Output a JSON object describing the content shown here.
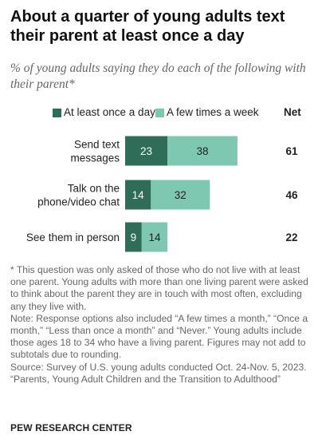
{
  "title": "About a quarter of young adults text their parent at least once a day",
  "subtitle": "% of young adults saying they do each of the following with their parent*",
  "net_header": "Net",
  "colors": {
    "daily": "#2f6d58",
    "weekly": "#7ec8b2",
    "text_dark": "#ffffff",
    "text_light": "#1f1f1f"
  },
  "chart_data": {
    "type": "bar",
    "orientation": "horizontal",
    "stacked": true,
    "categories": [
      "Send text messages",
      "Talk on the phone/video chat",
      "See them in person"
    ],
    "category_lines": [
      [
        "Send text",
        "messages"
      ],
      [
        "Talk on the",
        "phone/video chat"
      ],
      [
        "See them in person"
      ]
    ],
    "series": [
      {
        "name": "At least once a day",
        "values": [
          23,
          14,
          9
        ]
      },
      {
        "name": "A few times a week",
        "values": [
          38,
          32,
          14
        ]
      }
    ],
    "net": [
      61,
      46,
      22
    ],
    "legend_position": "top",
    "grid": false
  },
  "notes": [
    "* This question was only asked of those who do not live with at least one parent. Young adults with more than one living parent were asked to think about the parent they are in touch with most often, excluding any they live with.",
    "Note: Response options also included “A few times a month,” “Once a month,” “Less than once a month” and “Never.” Young adults include those ages 18 to 34 who have a living parent. Figures may not add to subtotals due to rounding.",
    "Source: Survey of U.S. young adults conducted Oct. 24-Nov. 5, 2023.",
    "“Parents, Young Adult Children and the Transition to Adulthood”"
  ],
  "source_org": "PEW RESEARCH CENTER"
}
